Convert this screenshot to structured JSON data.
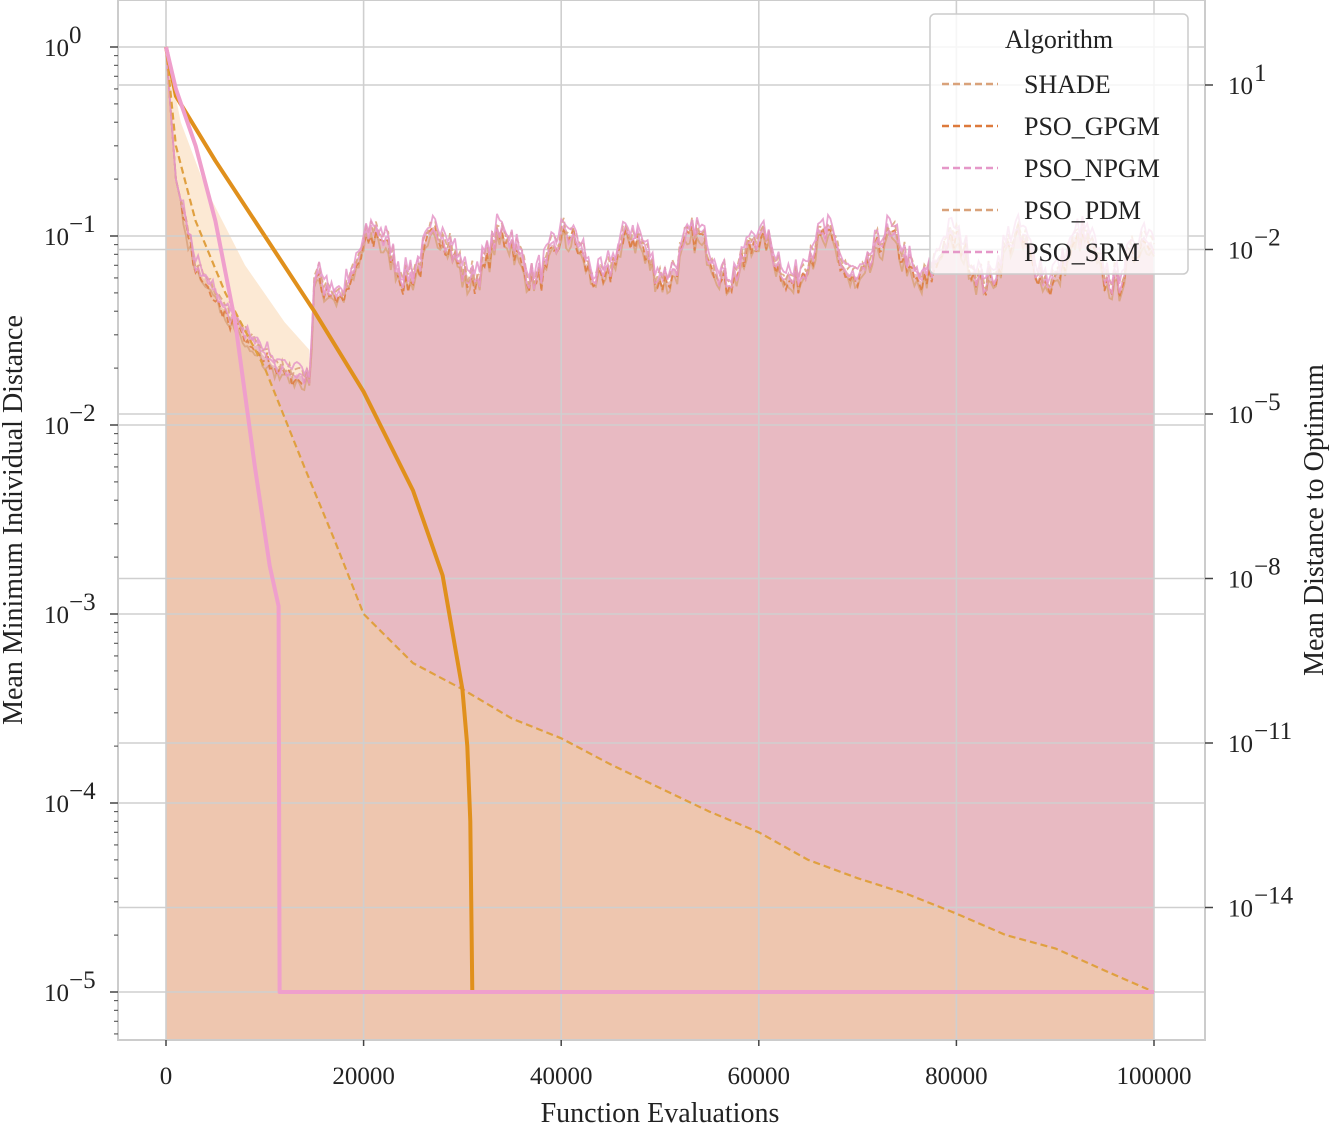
{
  "chart_data": {
    "type": "line",
    "xlabel": "Function Evaluations",
    "ylabel_left": "Mean Minimum Individual Distance",
    "ylabel_right": "Mean Distance to Optimum",
    "xlim": [
      -5000,
      105000
    ],
    "x_ticks": [
      0,
      20000,
      40000,
      60000,
      80000,
      100000
    ],
    "left_axis": {
      "scale": "log",
      "ylim": [
        5.5e-06,
        2.0
      ],
      "ticks": [
        "10^0",
        "10^-1",
        "10^-2",
        "10^-3",
        "10^-4",
        "10^-5"
      ],
      "tick_exponents": [
        0,
        -1,
        -2,
        -3,
        -4,
        -5
      ]
    },
    "right_axis": {
      "scale": "log",
      "tick_exponents": [
        1,
        -2,
        -5,
        -8,
        -11,
        -14
      ]
    },
    "grid": true,
    "legend": {
      "title": "Algorithm",
      "position": "top-right",
      "entries": [
        {
          "name": "SHADE",
          "color": "#d9a27a",
          "style": "dashed"
        },
        {
          "name": "PSO_GPGM",
          "color": "#dd7a3c",
          "style": "dashed"
        },
        {
          "name": "PSO_NPGM",
          "color": "#e597c8",
          "style": "dashed"
        },
        {
          "name": "PSO_PDM",
          "color": "#d9a27a",
          "style": "dashed"
        },
        {
          "name": "PSO_SRM",
          "color": "#e597c8",
          "style": "dashed"
        }
      ]
    },
    "series": [
      {
        "name": "distance_orange_solid",
        "color": "#e0901c",
        "style": "solid",
        "x": [
          0,
          1000,
          5000,
          10000,
          15000,
          20000,
          25000,
          28000,
          30000,
          30500,
          30800,
          31000
        ],
        "y": [
          1.0,
          0.55,
          0.25,
          0.1,
          0.04,
          0.015,
          0.0045,
          0.0016,
          0.0004,
          0.0002,
          8e-05,
          1e-05
        ]
      },
      {
        "name": "distance_orange_dashed",
        "color": "#e0a040",
        "style": "dashed",
        "x": [
          0,
          1000,
          3000,
          6000,
          10000,
          14000,
          17000,
          20000,
          25000,
          30000,
          35000,
          40000,
          45000,
          50000,
          55000,
          60000,
          65000,
          70000,
          75000,
          80000,
          85000,
          90000,
          95000,
          100000
        ],
        "y": [
          1.0,
          0.3,
          0.12,
          0.05,
          0.02,
          0.006,
          0.0025,
          0.001,
          0.00055,
          0.0004,
          0.00028,
          0.00022,
          0.00016,
          0.00012,
          9e-05,
          7e-05,
          5e-05,
          4e-05,
          3.3e-05,
          2.6e-05,
          2e-05,
          1.7e-05,
          1.3e-05,
          1e-05
        ]
      },
      {
        "name": "distance_pink_solid",
        "color": "#ef9fcc",
        "style": "solid",
        "x": [
          0,
          1000,
          3000,
          5000,
          7000,
          9000,
          10500,
          11400,
          11500,
          100000
        ],
        "y": [
          1.0,
          0.6,
          0.3,
          0.12,
          0.035,
          0.006,
          0.0018,
          0.0011,
          1e-05,
          1e-05
        ]
      },
      {
        "name": "diversity_band",
        "color": "#d98aa0",
        "style": "noisy",
        "x": [
          0,
          1000,
          3000,
          6000,
          9000,
          12000,
          14500,
          15000,
          17000,
          20000,
          100000
        ],
        "y": [
          1.0,
          0.2,
          0.07,
          0.04,
          0.026,
          0.019,
          0.018,
          0.045,
          0.06,
          0.08,
          0.075
        ]
      }
    ]
  }
}
